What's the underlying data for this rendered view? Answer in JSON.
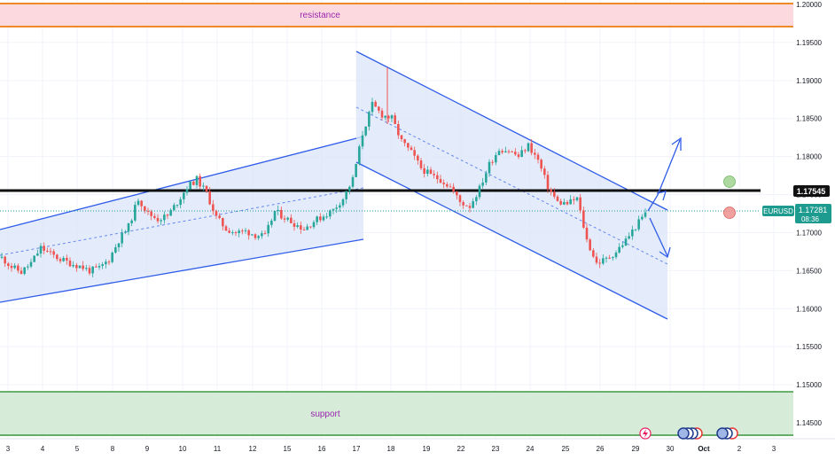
{
  "chart_data": {
    "type": "candlestick",
    "symbol": "EURUSD",
    "last_price": "1.17281",
    "countdown": "08:36",
    "level_label": "1.17545",
    "x_ticks": [
      "3",
      "4",
      "5",
      "8",
      "9",
      "10",
      "11",
      "12",
      "15",
      "16",
      "17",
      "18",
      "19",
      "22",
      "23",
      "24",
      "25",
      "26",
      "29",
      "30",
      "Oct",
      "2",
      "3"
    ],
    "y_ticks": [
      "1.20000",
      "1.19500",
      "1.19000",
      "1.18500",
      "1.18000",
      "1.17500",
      "1.17000",
      "1.16500",
      "1.16000",
      "1.15500",
      "1.15000",
      "1.14500"
    ],
    "ylim": [
      1.1432,
      1.2003
    ],
    "zones": [
      {
        "name": "resistance",
        "from": 1.1971,
        "to": 1.2005
      },
      {
        "name": "support",
        "from": 1.1435,
        "to": 1.1491
      }
    ],
    "horizontal_level": 1.17545,
    "ohlc_path": [
      [
        0,
        1.1667
      ],
      [
        1,
        1.1655
      ],
      [
        2,
        1.1648
      ],
      [
        3,
        1.166
      ],
      [
        4,
        1.168
      ],
      [
        5,
        1.1672
      ],
      [
        6,
        1.1665
      ],
      [
        7,
        1.166
      ],
      [
        8,
        1.1656
      ],
      [
        9,
        1.165
      ],
      [
        10,
        1.1653
      ],
      [
        11,
        1.1665
      ],
      [
        12,
        1.169
      ],
      [
        13,
        1.1708
      ],
      [
        14,
        1.1745
      ],
      [
        15,
        1.1725
      ],
      [
        16,
        1.1718
      ],
      [
        17,
        1.1722
      ],
      [
        18,
        1.174
      ],
      [
        19,
        1.176
      ],
      [
        20,
        1.177
      ],
      [
        21,
        1.1752
      ],
      [
        22,
        1.172
      ],
      [
        23,
        1.1705
      ],
      [
        24,
        1.17
      ],
      [
        25,
        1.1702
      ],
      [
        26,
        1.1697
      ],
      [
        27,
        1.1695
      ],
      [
        28,
        1.1728
      ],
      [
        29,
        1.172
      ],
      [
        30,
        1.1712
      ],
      [
        31,
        1.1705
      ],
      [
        32,
        1.1715
      ],
      [
        33,
        1.1722
      ],
      [
        34,
        1.173
      ],
      [
        35,
        1.1745
      ],
      [
        36,
        1.177
      ],
      [
        37,
        1.183
      ],
      [
        38,
        1.1868
      ],
      [
        39,
        1.1855
      ],
      [
        40,
        1.185
      ],
      [
        41,
        1.182
      ],
      [
        42,
        1.1805
      ],
      [
        43,
        1.1785
      ],
      [
        44,
        1.1775
      ],
      [
        45,
        1.177
      ],
      [
        46,
        1.176
      ],
      [
        47,
        1.174
      ],
      [
        48,
        1.1735
      ],
      [
        49,
        1.1758
      ],
      [
        50,
        1.179
      ],
      [
        51,
        1.181
      ],
      [
        52,
        1.1808
      ],
      [
        53,
        1.18
      ],
      [
        54,
        1.1815
      ],
      [
        55,
        1.1795
      ],
      [
        56,
        1.176
      ],
      [
        57,
        1.174
      ],
      [
        58,
        1.1738
      ],
      [
        59,
        1.1745
      ],
      [
        60,
        1.169
      ],
      [
        61,
        1.166
      ],
      [
        62,
        1.1665
      ],
      [
        63,
        1.1675
      ],
      [
        64,
        1.169
      ],
      [
        65,
        1.1708
      ],
      [
        66,
        1.1725
      ]
    ],
    "annotations": [
      {
        "label": "up-arrow",
        "direction": "up"
      },
      {
        "label": "down-arrow",
        "direction": "down"
      }
    ]
  },
  "colors": {
    "up": "#26a69a",
    "down": "#ef5350",
    "channel": "#2f5ce8",
    "channel_fill": "#dbe6fa",
    "resistance_fill": "#fcd9df",
    "resistance_line": "#f08a26",
    "support_fill": "#d6ebd8",
    "support_line": "#3f9a43",
    "zone_text": "#9a27b0",
    "level": "#111111",
    "price_tag": "#1e9b8f",
    "green_circle": "#9bd18b",
    "red_circle": "#f08a8a"
  },
  "icons": [
    "lightning-icon",
    "event-icons",
    "flag-icons"
  ]
}
